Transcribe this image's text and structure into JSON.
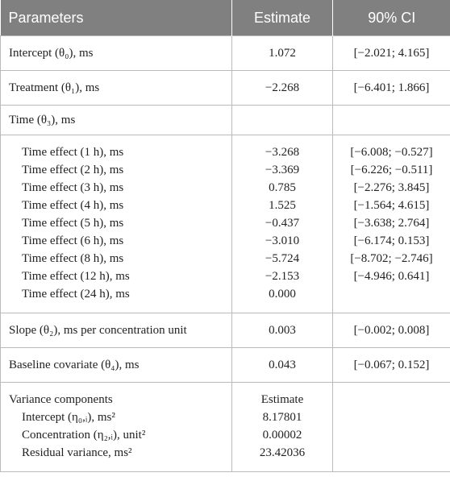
{
  "header": [
    "Parameters",
    "Estimate",
    "90% CI"
  ],
  "sections": [
    {
      "parameter": "Intercept (θ₀), ms",
      "estimate": "1.072",
      "ci": "[−2.021; 4.165]"
    },
    {
      "parameter": "Treatment (θ₁), ms",
      "estimate": "−2.268",
      "ci": "[−6.401; 1.866]"
    },
    {
      "parameter": "Time (θ₃), ms"
    },
    {
      "items": [
        {
          "parameter": "Time effect (1 h), ms",
          "estimate": "−3.268",
          "ci": "[−6.008; −0.527]"
        },
        {
          "parameter": "Time effect (2 h), ms",
          "estimate": "−3.369",
          "ci": "[−6.226; −0.511]"
        },
        {
          "parameter": "Time effect (3 h), ms",
          "estimate": "0.785",
          "ci": "[−2.276; 3.845]"
        },
        {
          "parameter": "Time effect (4 h), ms",
          "estimate": "1.525",
          "ci": "[−1.564; 4.615]"
        },
        {
          "parameter": "Time effect (5 h), ms",
          "estimate": "−0.437",
          "ci": "[−3.638; 2.764]"
        },
        {
          "parameter": "Time effect (6 h), ms",
          "estimate": "−3.010",
          "ci": "[−6.174; 0.153]"
        },
        {
          "parameter": "Time effect (8 h), ms",
          "estimate": "−5.724",
          "ci": "[−8.702; −2.746]"
        },
        {
          "parameter": "Time effect (12 h), ms",
          "estimate": "−2.153",
          "ci": "[−4.946; 0.641]"
        },
        {
          "parameter": "Time effect (24 h), ms",
          "estimate": "0.000"
        }
      ]
    },
    {
      "parameter": "Slope (θ₂), ms per concentration unit",
      "estimate": "0.003",
      "ci": "[−0.002; 0.008]"
    },
    {
      "parameter": "Baseline covariate (θ₄), ms",
      "estimate": "0.043",
      "ci": "[−0.067; 0.152]"
    },
    {
      "parameter": "Variance components",
      "estimate": "Estimate",
      "items": [
        {
          "parameter": "Intercept (η₀,ᵢ), ms²",
          "estimate": "8.17801"
        },
        {
          "parameter": "Concentration (η₂,ᵢ), unit²",
          "estimate": "0.00002"
        },
        {
          "parameter": "Residual variance, ms²",
          "estimate": "23.42036"
        }
      ]
    }
  ]
}
